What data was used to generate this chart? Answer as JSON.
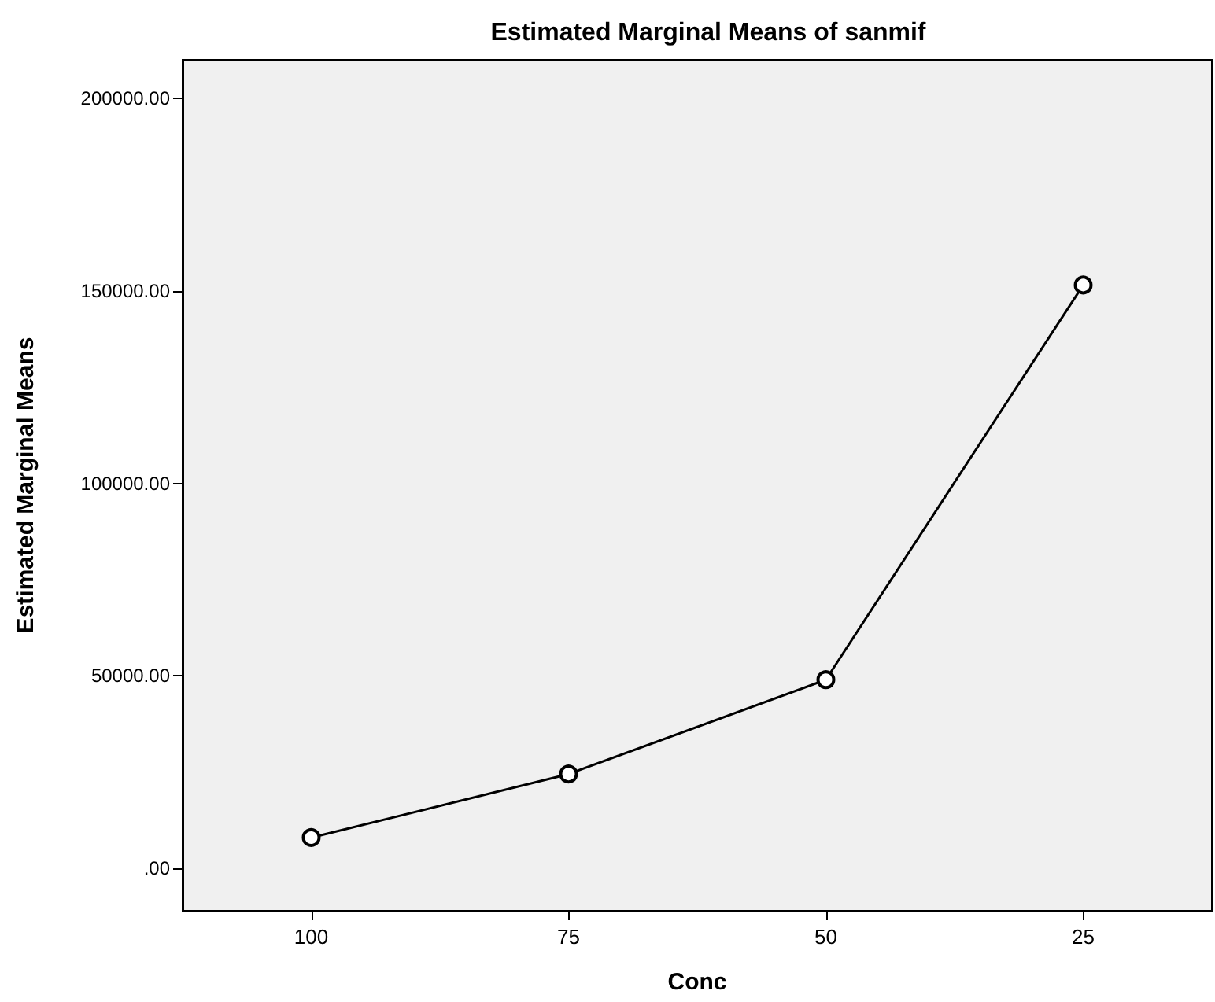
{
  "chart_data": {
    "type": "line",
    "title": "Estimated Marginal Means of sanmif",
    "xlabel": "Conc",
    "ylabel": "Estimated Marginal Means",
    "categories": [
      "100",
      "75",
      "50",
      "25"
    ],
    "series": [
      {
        "color": "#000000",
        "values": [
          8000,
          24500,
          49000,
          151500
        ]
      }
    ],
    "ylim": [
      -11000,
      210000
    ],
    "yticks": [
      {
        "value": 0,
        "label": ".00"
      },
      {
        "value": 50000,
        "label": "50000.00"
      },
      {
        "value": 100000,
        "label": "100000.00"
      },
      {
        "value": 150000,
        "label": "150000.00"
      },
      {
        "value": 200000,
        "label": "200000.00"
      }
    ],
    "grid": false,
    "marker": "circle",
    "line_style": "solid"
  }
}
